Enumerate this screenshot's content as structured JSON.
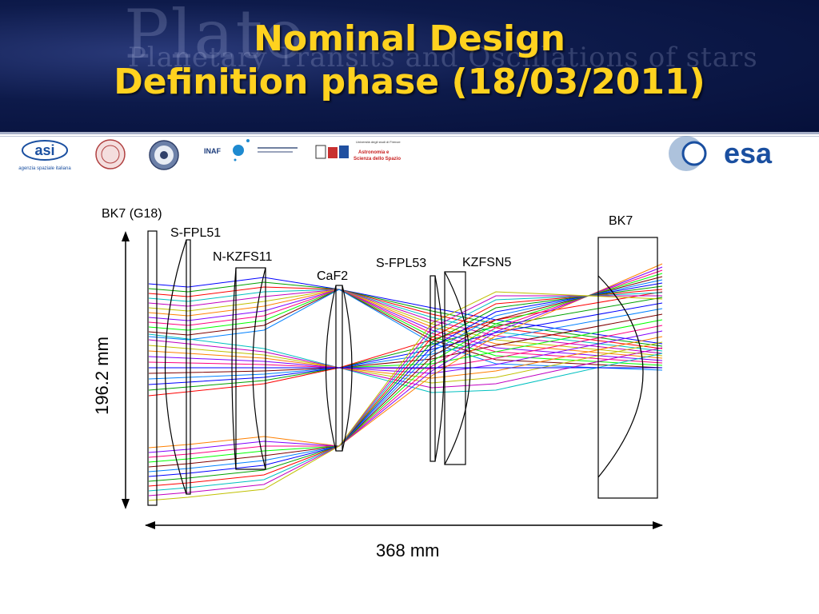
{
  "header": {
    "title_line1": "Nominal Design",
    "title_line2": "Definition phase (18/03/2011)",
    "bg_plato": "Plato",
    "bg_subtitle": "Planetary Transits and Oscillations of stars"
  },
  "logos": {
    "asi_name": "asi",
    "asi_caption": "agenzia spaziale italiana",
    "inaf_name": "INAF",
    "univ_firenze": "Università degli studi di Firenze",
    "astro_line1": "Astronomia e",
    "astro_line2": "Scienza dello Spazio",
    "esa_name": "esa"
  },
  "diagram": {
    "lens_labels": {
      "bk7_g18": "BK7 (G18)",
      "s_fpl51": "S-FPL51",
      "n_kzfs11": "N-KZFS11",
      "caf2": "CaF2",
      "s_fpl53": "S-FPL53",
      "kzfsn5": "KZFSN5",
      "bk7": "BK7"
    },
    "height_label": "196.2 mm",
    "length_label": "368 mm"
  },
  "colors": {
    "title": "#ffd21f",
    "banner": "#0d1a4a",
    "rays": [
      "#0000ff",
      "#00a000",
      "#ff0000",
      "#00c0c0",
      "#c000c0",
      "#c0c000",
      "#ff8000",
      "#8000ff",
      "#ff0080",
      "#00ff00",
      "#800000",
      "#0080ff"
    ]
  }
}
